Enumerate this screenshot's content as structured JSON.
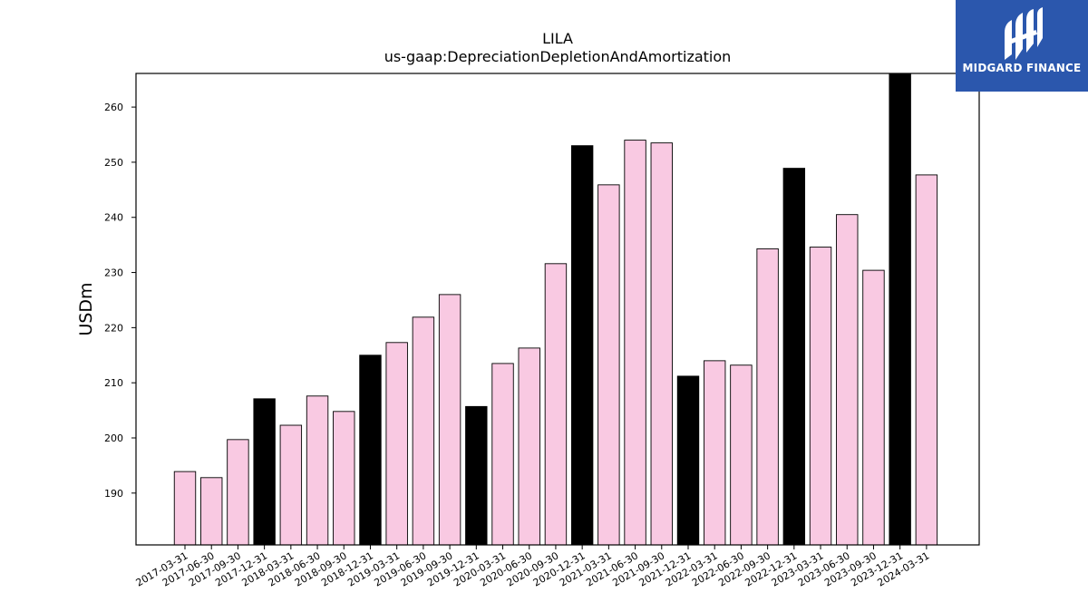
{
  "chart_data": {
    "type": "bar",
    "title": "LILA",
    "subtitle": "us-gaap:DepreciationDepletionAndAmortization",
    "xlabel": "",
    "ylabel": "USDm",
    "ylim": [
      180.6,
      266.1
    ],
    "yticks": [
      190,
      200,
      210,
      220,
      230,
      240,
      250,
      260
    ],
    "grid": false,
    "colors": {
      "quarter": "#f9c9e2",
      "year_end": "#000000",
      "edge": "#000000"
    },
    "categories": [
      "2017-03-31",
      "2017-06-30",
      "2017-09-30",
      "2017-12-31",
      "2018-03-31",
      "2018-06-30",
      "2018-09-30",
      "2018-12-31",
      "2019-03-31",
      "2019-06-30",
      "2019-09-30",
      "2019-12-31",
      "2020-03-31",
      "2020-06-30",
      "2020-09-30",
      "2020-12-31",
      "2021-03-31",
      "2021-06-30",
      "2021-09-30",
      "2021-12-31",
      "2022-03-31",
      "2022-06-30",
      "2022-09-30",
      "2022-12-31",
      "2023-03-31",
      "2023-06-30",
      "2023-09-30",
      "2023-12-31",
      "2024-03-31"
    ],
    "values": [
      193.9,
      192.8,
      199.7,
      207.1,
      202.3,
      207.6,
      204.8,
      215.0,
      217.3,
      221.9,
      226.0,
      205.7,
      213.5,
      216.3,
      231.6,
      253.0,
      245.9,
      254.0,
      253.5,
      211.2,
      214.0,
      213.2,
      234.3,
      248.9,
      234.6,
      240.5,
      230.4,
      266.1,
      247.7
    ],
    "highlight": [
      false,
      false,
      false,
      true,
      false,
      false,
      false,
      true,
      false,
      false,
      false,
      true,
      false,
      false,
      false,
      true,
      false,
      false,
      false,
      true,
      false,
      false,
      false,
      true,
      false,
      false,
      false,
      true,
      false
    ]
  },
  "logo": {
    "text": "MIDGARD FINANCE",
    "icon": "midgard-logo-icon"
  }
}
